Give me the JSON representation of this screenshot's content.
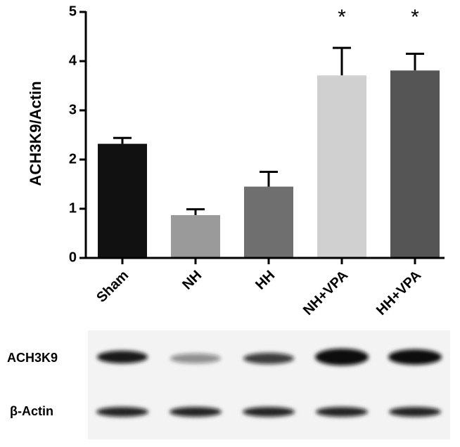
{
  "chart_data": {
    "type": "bar",
    "y_label": "ACH3K9/Actin",
    "categories": [
      "Sham",
      "NH",
      "HH",
      "NH+VPA",
      "HH+VPA"
    ],
    "values": [
      2.32,
      0.87,
      1.45,
      3.71,
      3.81
    ],
    "errors": [
      0.12,
      0.12,
      0.3,
      0.56,
      0.34
    ],
    "colors": [
      "#111111",
      "#9a9a9a",
      "#6f6f6f",
      "#d0d0d0",
      "#555555"
    ],
    "ylim": [
      0,
      5
    ],
    "yticks": [
      0,
      1,
      2,
      3,
      4,
      5
    ],
    "annotations": [
      {
        "text": "*",
        "category": "NH+VPA"
      },
      {
        "text": "*",
        "category": "HH+VPA"
      }
    ],
    "blot": {
      "rows": [
        "ACH3K9",
        "β-Actin"
      ]
    }
  }
}
